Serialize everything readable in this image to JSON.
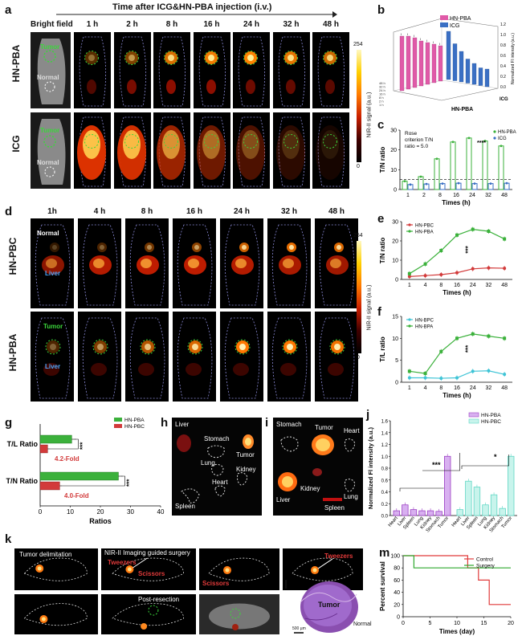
{
  "panel_a": {
    "letter": "a",
    "header": "Time after ICG&HN-PBA injection (i.v.)",
    "bright_field": "Bright field",
    "times": [
      "1 h",
      "2 h",
      "8 h",
      "16 h",
      "24 h",
      "32 h",
      "48 h"
    ],
    "rows": [
      "HN-PBA",
      "ICG"
    ],
    "tumor": "Tumor",
    "normal": "Normal",
    "cbar_max": "254",
    "cbar_min": "0",
    "cbar_label": "NIR-II signal (a.u.)"
  },
  "panel_b": {
    "letter": "b",
    "legend": [
      "HN-PBA",
      "ICG"
    ],
    "axis_label": "Normalized FI intensity (a.u.)",
    "ticks": [
      "0.0",
      "0.2",
      "0.4",
      "0.6",
      "0.8",
      "1.0",
      "1.2"
    ],
    "floor_x": "HN-PBA",
    "floor_y": "ICG",
    "times": [
      "48 h",
      "32 h",
      "24 h",
      "16 h",
      "8 h",
      "2 h",
      "1 h"
    ]
  },
  "panel_c": {
    "letter": "c",
    "ylabel": "T/N ratio",
    "xlabel": "Times (h)",
    "annotation": [
      "Rose",
      "criterion T/N",
      "ratio = 5.0"
    ],
    "sig": "****",
    "chart_data": {
      "type": "bar",
      "categories": [
        "1",
        "2",
        "8",
        "16",
        "24",
        "32",
        "48"
      ],
      "series": [
        {
          "name": "HN-PBA",
          "values": [
            4.2,
            6.5,
            15.5,
            24,
            26,
            24.5,
            22
          ]
        },
        {
          "name": "ICG",
          "values": [
            2.5,
            2.8,
            3,
            3.2,
            3,
            3,
            3.2
          ]
        }
      ],
      "ylim": [
        0,
        30
      ],
      "yticks": [
        0,
        10,
        20,
        30
      ],
      "threshold": 5.0
    }
  },
  "panel_d": {
    "letter": "d",
    "times": [
      "1h",
      "4 h",
      "8 h",
      "16 h",
      "24 h",
      "32 h",
      "48 h"
    ],
    "rows": [
      "HN-PBC",
      "HN-PBA"
    ],
    "normal": "Normal",
    "tumor": "Tumor",
    "liver": "Liver",
    "cbar_max": "254",
    "cbar_min": "0",
    "cbar_label": "NIR-II signal (a.u.)"
  },
  "panel_e": {
    "letter": "e",
    "ylabel": "T/N ratio",
    "xlabel": "Times (h)",
    "sig": "***",
    "chart_data": {
      "type": "line",
      "categories": [
        "1",
        "4",
        "8",
        "16",
        "24",
        "32",
        "48"
      ],
      "series": [
        {
          "name": "HN-PBC",
          "values": [
            1.5,
            2,
            2.5,
            3.5,
            5.5,
            6,
            5.8
          ]
        },
        {
          "name": "HN-PBA",
          "values": [
            3,
            8,
            15,
            23,
            26,
            25,
            21
          ]
        }
      ],
      "ylim": [
        0,
        30
      ],
      "yticks": [
        0,
        10,
        20,
        30
      ]
    }
  },
  "panel_f": {
    "letter": "f",
    "ylabel": "T/L ratio",
    "xlabel": "Times (h)",
    "sig": "***",
    "chart_data": {
      "type": "line",
      "categories": [
        "1",
        "4",
        "8",
        "16",
        "24",
        "32",
        "48"
      ],
      "series": [
        {
          "name": "HN-BPC",
          "values": [
            1,
            1,
            0.9,
            1,
            2.5,
            2.6,
            1.8
          ]
        },
        {
          "name": "HN-BPA",
          "values": [
            2.5,
            2,
            7,
            10,
            11,
            10.5,
            10
          ]
        }
      ],
      "ylim": [
        0,
        15
      ],
      "yticks": [
        0,
        5,
        10,
        15
      ]
    }
  },
  "panel_g": {
    "letter": "g",
    "xlabel": "Ratios",
    "fold1": "4.2-Fold",
    "fold2": "4.0-Fold",
    "sig": "***",
    "chart_data": {
      "type": "bar",
      "categories": [
        "T/L Ratio",
        "T/N Ratio"
      ],
      "series": [
        {
          "name": "HN-PBA",
          "values": [
            10.5,
            26
          ]
        },
        {
          "name": "HN-PBC",
          "values": [
            2.5,
            6.5
          ]
        }
      ],
      "xlim": [
        0,
        40
      ],
      "xticks": [
        0,
        10,
        20,
        30,
        40
      ]
    }
  },
  "panel_h": {
    "letter": "h",
    "labels": [
      "Liver",
      "Stomach",
      "Tumor",
      "Lung",
      "Heart",
      "Kidney",
      "Spleen"
    ]
  },
  "panel_i": {
    "letter": "i",
    "labels": [
      "Stomach",
      "Tumor",
      "Heart",
      "Liver",
      "Kidney",
      "Lung",
      "Spleen"
    ]
  },
  "panel_j": {
    "letter": "j",
    "ylabel": "Normalized Fl intensity (a.u.)",
    "sig1": "***",
    "sig2": "*",
    "chart_data": {
      "type": "bar",
      "categories": [
        "Heart",
        "Liver",
        "Spleen",
        "Lung",
        "Kidney",
        "Stomach",
        "Tumor"
      ],
      "series": [
        {
          "name": "HN-PBA",
          "values": [
            0.08,
            0.18,
            0.1,
            0.08,
            0.08,
            0.07,
            1.0
          ]
        },
        {
          "name": "HN-PBC",
          "values": [
            0.1,
            0.58,
            0.48,
            0.18,
            0.35,
            0.12,
            1.0
          ]
        }
      ],
      "ylim": [
        0,
        1.6
      ],
      "yticks": [
        "0.0",
        "0.2",
        "0.4",
        "0.6",
        "0.8",
        "1.0",
        "1.2",
        "1.4",
        "1.6"
      ]
    }
  },
  "panel_k": {
    "letter": "k",
    "tumor_delim": "Tumor delimitation",
    "guided": "NIR-II Imaging guided surgery",
    "tweezers": "Tweezers",
    "scissors": "Scissors",
    "post": "Post-resection"
  },
  "panel_l": {
    "letter": "l",
    "tumor": "Tumor",
    "normal": "Normal",
    "scale": "500 µm"
  },
  "panel_m": {
    "letter": "m",
    "ylabel": "Percent survival",
    "xlabel": "Times (day)",
    "chart_data": {
      "type": "line",
      "series": [
        {
          "name": "Control",
          "x": [
            0,
            12,
            12,
            14,
            14,
            16,
            16,
            18,
            18,
            20
          ],
          "y": [
            100,
            100,
            80,
            80,
            60,
            60,
            20,
            20,
            20,
            20
          ]
        },
        {
          "name": "Surgery",
          "x": [
            0,
            2,
            2,
            20
          ],
          "y": [
            100,
            100,
            80,
            80
          ]
        }
      ],
      "xlim": [
        0,
        20
      ],
      "ylim": [
        0,
        100
      ],
      "xticks": [
        0,
        5,
        10,
        15,
        20
      ],
      "yticks": [
        0,
        20,
        40,
        60,
        80,
        100
      ]
    }
  },
  "colors": {
    "pink": "#e05aa8",
    "blue": "#3a6fc4",
    "green": "#3bb13b",
    "red": "#d23a3a",
    "cyan": "#3fc4d6",
    "purple": "#9b3fc4",
    "teal": "#5fd6c4",
    "ctrl": "#e03a3a",
    "surg": "#2fa82f"
  }
}
